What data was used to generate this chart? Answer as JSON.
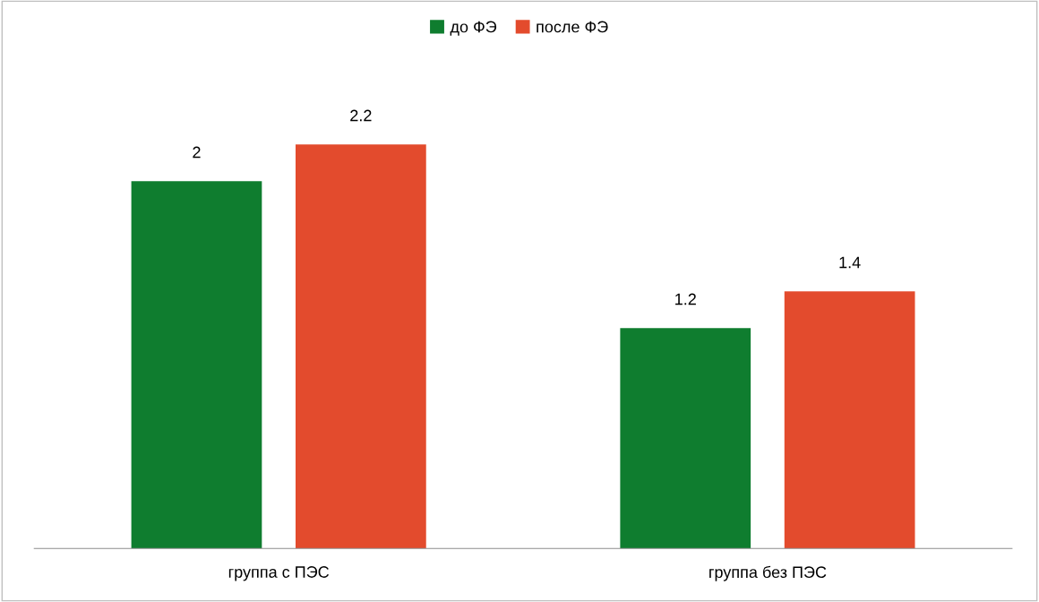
{
  "chart_data": {
    "type": "bar",
    "categories": [
      "группа с ПЭС",
      "группа без ПЭС"
    ],
    "series": [
      {
        "name": "до ФЭ",
        "color": "#0f7d2f",
        "values": [
          2,
          1.2
        ]
      },
      {
        "name": "после ФЭ",
        "color": "#e34b2d",
        "values": [
          2.2,
          1.4
        ]
      }
    ],
    "data_labels": true,
    "legend": "top",
    "grid": false
  }
}
